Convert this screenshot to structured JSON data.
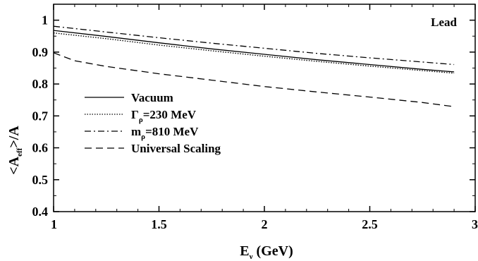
{
  "chart_data": {
    "type": "line",
    "title": "",
    "annotation": "Lead",
    "xlabel": {
      "main": "E",
      "sub": "ν",
      "rest": " (GeV)"
    },
    "ylabel": {
      "pre": "<A",
      "sub": "eff",
      "post": ">/A"
    },
    "xlim": [
      1,
      3
    ],
    "ylim": [
      0.4,
      1.05
    ],
    "xticks": [
      1,
      1.5,
      2,
      2.5,
      3
    ],
    "xtick_labels": [
      "1",
      "1.5",
      "2",
      "2.5",
      "3"
    ],
    "yticks": [
      0.4,
      0.5,
      0.6,
      0.7,
      0.8,
      0.9,
      1.0
    ],
    "ytick_labels": [
      "0.4",
      "0.5",
      "0.6",
      "0.7",
      "0.8",
      "0.9",
      "1"
    ],
    "grid": false,
    "legend_position": "center-left",
    "series": [
      {
        "name": "Vacuum",
        "label": {
          "pre": "Vacuum",
          "sub": "",
          "post": ""
        },
        "style": "solid",
        "x": [
          1.0,
          1.25,
          1.5,
          1.75,
          2.0,
          2.25,
          2.5,
          2.75,
          2.9
        ],
        "y": [
          0.968,
          0.949,
          0.929,
          0.91,
          0.893,
          0.876,
          0.861,
          0.846,
          0.838
        ]
      },
      {
        "name": "Γρ=230 MeV",
        "label": {
          "pre": "Γ",
          "sub": "ρ",
          "post": "=230 MeV"
        },
        "style": "dotted",
        "x": [
          1.0,
          1.25,
          1.5,
          1.75,
          2.0,
          2.25,
          2.5,
          2.75,
          2.9
        ],
        "y": [
          0.96,
          0.942,
          0.922,
          0.904,
          0.887,
          0.871,
          0.856,
          0.842,
          0.834
        ]
      },
      {
        "name": "mρ=810 MeV",
        "label": {
          "pre": "m",
          "sub": "ρ",
          "post": "=810 MeV"
        },
        "style": "dashdot",
        "x": [
          1.0,
          1.25,
          1.5,
          1.75,
          2.0,
          2.25,
          2.5,
          2.75,
          2.9
        ],
        "y": [
          0.981,
          0.963,
          0.945,
          0.928,
          0.912,
          0.896,
          0.882,
          0.869,
          0.861
        ]
      },
      {
        "name": "Universal Scaling",
        "label": {
          "pre": "Universal Scaling",
          "sub": "",
          "post": ""
        },
        "style": "dashed",
        "x": [
          1.0,
          1.1,
          1.25,
          1.5,
          1.75,
          2.0,
          2.25,
          2.5,
          2.75,
          2.9
        ],
        "y": [
          0.898,
          0.873,
          0.855,
          0.832,
          0.812,
          0.792,
          0.775,
          0.759,
          0.742,
          0.729
        ]
      }
    ]
  }
}
